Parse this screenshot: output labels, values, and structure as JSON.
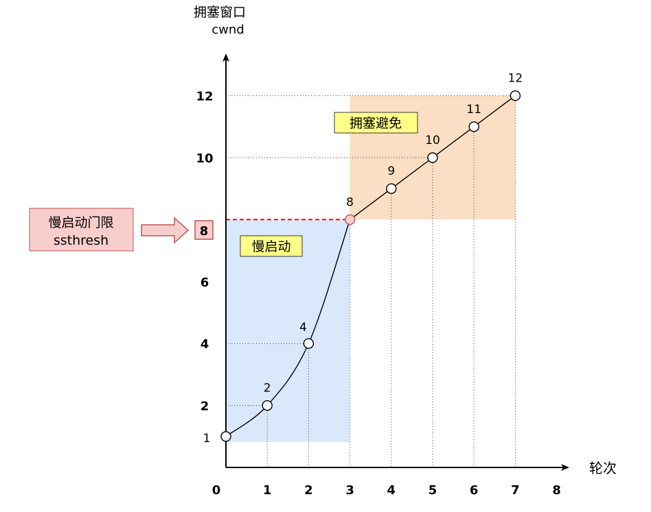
{
  "y_axis": {
    "title": "拥塞窗口",
    "subtitle": "cwnd"
  },
  "x_axis": {
    "title": "轮次"
  },
  "ssthresh_box": {
    "line1": "慢启动门限",
    "line2": "ssthresh",
    "value": "8"
  },
  "regions": {
    "slow_start": "慢启动",
    "congestion_avoidance": "拥塞避免"
  },
  "colors": {
    "slow_start_fill": "#dae8fc",
    "avoid_fill": "#fbdfc4",
    "label_fill": "#ffff88",
    "ssthresh_fill": "#f8cecc",
    "ssthresh_stroke": "#b85450",
    "dashed": "#ff0000",
    "highlight_point": "#f8cecc"
  },
  "chart_data": {
    "type": "line",
    "x_ticks": [
      "0",
      "1",
      "2",
      "3",
      "4",
      "5",
      "6",
      "7",
      "8"
    ],
    "y_ticks": [
      "2",
      "4",
      "6",
      "10",
      "12"
    ],
    "xlim": [
      0,
      8
    ],
    "ylim": [
      0,
      12
    ],
    "x": [
      0,
      1,
      2,
      3,
      4,
      5,
      6,
      7
    ],
    "y": [
      1,
      2,
      4,
      8,
      9,
      10,
      11,
      12
    ],
    "point_labels": [
      "1",
      "2",
      "4",
      "8",
      "9",
      "10",
      "11",
      "12"
    ],
    "ssthresh": 8,
    "slow_start_rounds": [
      0,
      3
    ],
    "congestion_avoidance_rounds": [
      3,
      7
    ]
  }
}
